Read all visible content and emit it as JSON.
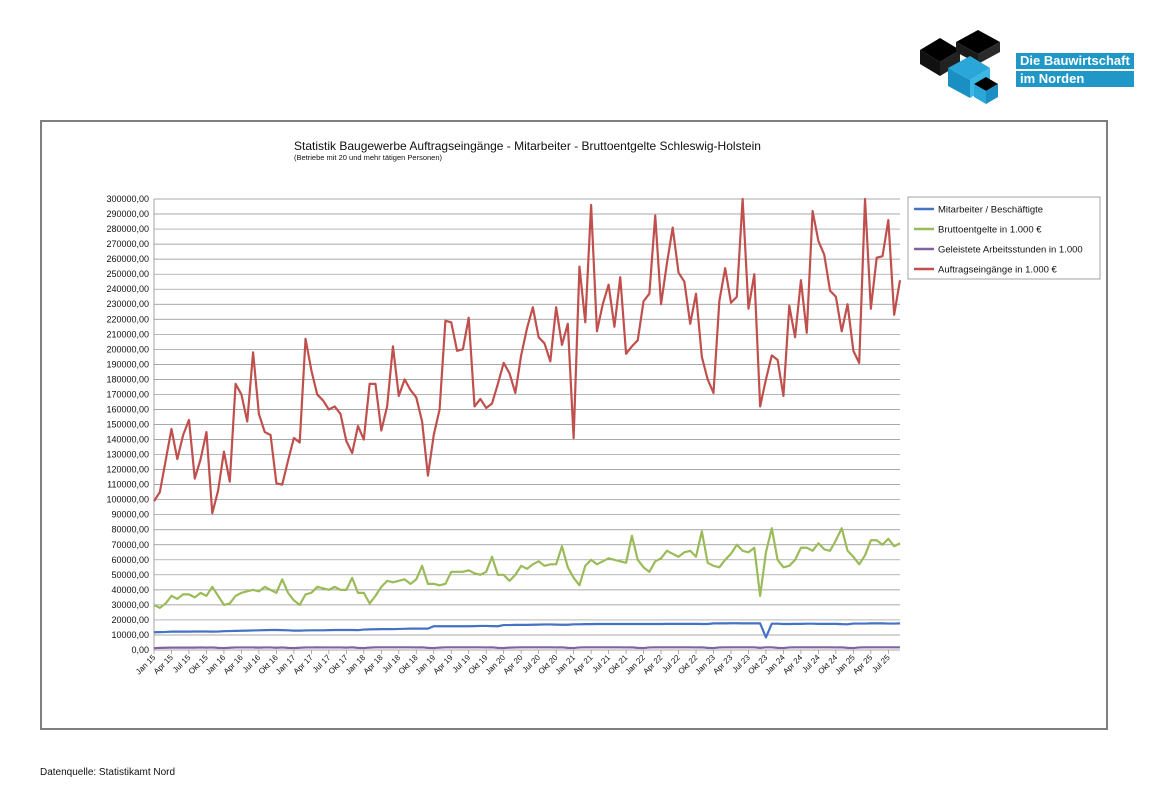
{
  "logo": {
    "line1": "Die Bauwirtschaft",
    "line2": "im Norden"
  },
  "footer": {
    "source": "Datenquelle: Statistikamt Nord"
  },
  "colors": {
    "series1": "#4472c4",
    "series2": "#9bbb59",
    "series3": "#8064a2",
    "series4": "#c0504d",
    "grid": "#8c8c8c"
  },
  "chart_data": {
    "type": "line",
    "title": "Statistik Baugewerbe Auftragseingänge - Mitarbeiter - Bruttoentgelte Schleswig-Holstein",
    "subtitle": "(Betriebe mit 20 und mehr tätigen Personen)",
    "ylim": [
      0,
      300000
    ],
    "ytick_step": 10000,
    "ytick_labels": [
      "0,00",
      "10000,00",
      "20000,00",
      "30000,00",
      "40000,00",
      "50000,00",
      "60000,00",
      "70000,00",
      "80000,00",
      "90000,00",
      "100000,00",
      "110000,00",
      "120000,00",
      "130000,00",
      "140000,00",
      "150000,00",
      "160000,00",
      "170000,00",
      "180000,00",
      "190000,00",
      "200000,00",
      "210000,00",
      "220000,00",
      "230000,00",
      "240000,00",
      "250000,00",
      "260000,00",
      "270000,00",
      "280000,00",
      "290000,00",
      "300000,00"
    ],
    "grid": true,
    "legend_position": "right",
    "x_start": "Jan 15",
    "x_end": "Sep 25",
    "xtick_labels": [
      "Jan 15",
      "Apr 15",
      "Jul 15",
      "Okt 15",
      "Jan 16",
      "Apr 16",
      "Jul 16",
      "Okt 16",
      "Jan 17",
      "Apr 17",
      "Jul 17",
      "Okt 17",
      "Jan 18",
      "Apr 18",
      "Jul 18",
      "Okt 18",
      "Jan 19",
      "Apr 19",
      "Jul 19",
      "Okt 19",
      "Jan 20",
      "Apr 20",
      "Jul 20",
      "Okt 20",
      "Jan 21",
      "Apr 21",
      "Jul 21",
      "Okt 21",
      "Jan 22",
      "Apr 22",
      "Jul 22",
      "Okt 22",
      "Jan 23",
      "Apr 23",
      "Jul 23",
      "Okt 23",
      "Jan 24",
      "Apr 24",
      "Jul 24",
      "Okt 24",
      "Jan 25",
      "Apr 25",
      "Jul 25"
    ],
    "series": [
      {
        "name": "Mitarbeiter / Beschäftigte",
        "color": "#4472c4",
        "values": [
          11800,
          11900,
          12000,
          12200,
          12200,
          12200,
          12200,
          12300,
          12300,
          12300,
          12200,
          12300,
          12500,
          12600,
          12700,
          12800,
          12900,
          13000,
          13100,
          13200,
          13300,
          13300,
          13200,
          13100,
          12900,
          12900,
          13000,
          13100,
          13100,
          13100,
          13200,
          13300,
          13300,
          13300,
          13300,
          13200,
          13600,
          13700,
          13800,
          13900,
          13900,
          13900,
          14000,
          14100,
          14200,
          14200,
          14200,
          14200,
          15800,
          15800,
          15800,
          15800,
          15800,
          15800,
          15800,
          15900,
          16000,
          16000,
          15900,
          15800,
          16600,
          16600,
          16700,
          16700,
          16700,
          16800,
          16900,
          17000,
          17000,
          16900,
          16800,
          16800,
          17100,
          17100,
          17200,
          17200,
          17300,
          17300,
          17300,
          17300,
          17300,
          17300,
          17300,
          17300,
          17300,
          17300,
          17300,
          17300,
          17400,
          17400,
          17400,
          17400,
          17400,
          17400,
          17300,
          17300,
          17700,
          17700,
          17700,
          17800,
          17800,
          17700,
          17700,
          17700,
          17700,
          8400,
          17500,
          17500,
          17300,
          17300,
          17400,
          17400,
          17500,
          17500,
          17400,
          17400,
          17400,
          17400,
          17200,
          17100,
          17600,
          17600,
          17600,
          17700,
          17700,
          17700,
          17600,
          17600,
          17700
        ]
      },
      {
        "name": "Bruttoentgelte in 1.000 €",
        "color": "#9bbb59",
        "values": [
          30000,
          28000,
          31000,
          36000,
          34000,
          37000,
          37000,
          35000,
          38000,
          36000,
          42000,
          36000,
          30000,
          31000,
          36000,
          38000,
          39000,
          40000,
          39000,
          42000,
          40000,
          38000,
          47000,
          38000,
          33000,
          30000,
          37000,
          38000,
          42000,
          41000,
          40000,
          42000,
          40000,
          40000,
          48000,
          38000,
          38000,
          31000,
          36000,
          42000,
          46000,
          45000,
          46000,
          47000,
          44000,
          47000,
          56000,
          44000,
          44000,
          43000,
          44000,
          52000,
          52000,
          52000,
          53000,
          51000,
          50000,
          52000,
          62000,
          50000,
          50000,
          46000,
          50000,
          56000,
          54000,
          57000,
          59000,
          56000,
          57000,
          57000,
          69000,
          55000,
          48000,
          43000,
          56000,
          60000,
          57000,
          59000,
          61000,
          60000,
          59000,
          58000,
          76000,
          60000,
          55000,
          52000,
          59000,
          61000,
          66000,
          64000,
          62000,
          65000,
          66000,
          62000,
          79000,
          58000,
          56000,
          55000,
          60000,
          64000,
          70000,
          66000,
          65000,
          68000,
          36000,
          65000,
          81000,
          60000,
          55000,
          56000,
          60000,
          68000,
          68000,
          66000,
          71000,
          67000,
          66000,
          73000,
          81000,
          66000,
          62000,
          57000,
          63000,
          73000,
          73000,
          70000,
          74000,
          69000,
          71000
        ]
      },
      {
        "name": "Geleistete Arbeitsstunden in 1.000",
        "color": "#8064a2",
        "values": [
          1200,
          1400,
          1500,
          1600,
          1600,
          1600,
          1600,
          1600,
          1700,
          1600,
          1700,
          1400,
          1300,
          1500,
          1700,
          1700,
          1700,
          1700,
          1600,
          1700,
          1700,
          1500,
          1700,
          1400,
          1300,
          1500,
          1700,
          1700,
          1800,
          1700,
          1700,
          1700,
          1700,
          1600,
          1800,
          1400,
          1300,
          1600,
          1800,
          1800,
          1800,
          1800,
          1800,
          1800,
          1800,
          1700,
          1800,
          1400,
          1300,
          1600,
          1800,
          1800,
          1800,
          1800,
          1800,
          1800,
          1800,
          1700,
          1800,
          1400,
          1300,
          1600,
          1700,
          1800,
          1800,
          1800,
          1800,
          1800,
          1800,
          1700,
          1800,
          1400,
          1300,
          1700,
          1800,
          1800,
          1800,
          1800,
          1800,
          1800,
          1800,
          1700,
          1800,
          1400,
          1300,
          1700,
          1800,
          1800,
          1800,
          1800,
          1800,
          1800,
          1800,
          1700,
          1800,
          1400,
          1300,
          1700,
          1800,
          1800,
          1800,
          1800,
          1800,
          1800,
          1400,
          1800,
          1800,
          1400,
          1300,
          1700,
          1800,
          1800,
          1800,
          1800,
          1800,
          1800,
          1800,
          1700,
          1800,
          1400,
          1300,
          1700,
          1800,
          1800,
          1800,
          1800,
          1800,
          1800,
          1800
        ]
      },
      {
        "name": "Auftragseingänge in 1.000 €",
        "color": "#c0504d",
        "values": [
          99000,
          105000,
          126000,
          147000,
          127000,
          143000,
          153000,
          114000,
          127000,
          145000,
          91000,
          106000,
          132000,
          112000,
          177000,
          170000,
          152000,
          198000,
          157000,
          145000,
          143000,
          111000,
          110000,
          126000,
          141000,
          138000,
          207000,
          186000,
          170000,
          166000,
          160000,
          162000,
          157000,
          139000,
          131000,
          149000,
          140000,
          177000,
          177000,
          146000,
          162000,
          202000,
          169000,
          180000,
          173000,
          168000,
          152000,
          116000,
          143000,
          160000,
          219000,
          218000,
          199000,
          200000,
          221000,
          162000,
          167000,
          161000,
          164000,
          177000,
          191000,
          184000,
          171000,
          196000,
          214000,
          228000,
          208000,
          204000,
          192000,
          228000,
          203000,
          217000,
          141000,
          255000,
          218000,
          296000,
          212000,
          230000,
          243000,
          215000,
          248000,
          197000,
          202000,
          206000,
          232000,
          237000,
          289000,
          230000,
          257000,
          281000,
          251000,
          245000,
          217000,
          237000,
          195000,
          180000,
          171000,
          232000,
          254000,
          231000,
          235000,
          300000,
          227000,
          250000,
          162000,
          180000,
          196000,
          193000,
          169000,
          229000,
          208000,
          246000,
          211000,
          292000,
          272000,
          263000,
          239000,
          235000,
          212000,
          230000,
          199000,
          191000,
          301000,
          227000,
          261000,
          262000,
          286000,
          223000,
          246000
        ]
      }
    ]
  }
}
